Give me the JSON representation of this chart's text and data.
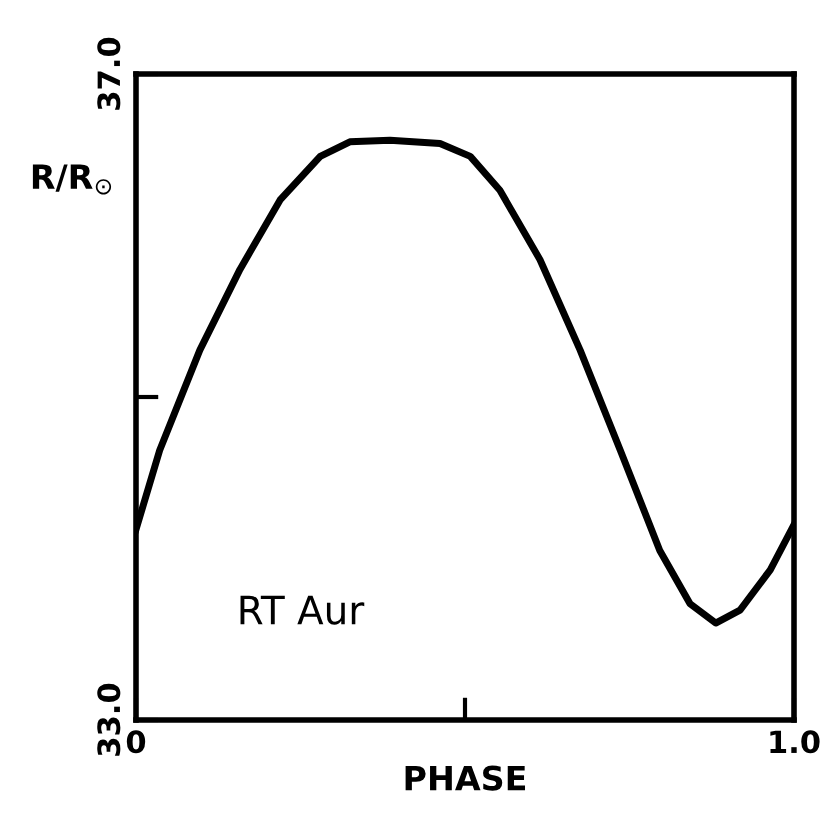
{
  "chart_data": {
    "type": "line",
    "xlabel": "PHASE",
    "ylabel": "R/R$_{⊙}$",
    "annotations": [
      "RT Aur"
    ],
    "x": [
      0,
      0.036,
      0.097,
      0.158,
      0.219,
      0.28,
      0.325,
      0.386,
      0.462,
      0.508,
      0.553,
      0.614,
      0.675,
      0.736,
      0.796,
      0.842,
      0.881,
      0.918,
      0.964,
      1.0
    ],
    "series": [
      {
        "color": "#000000",
        "values": [
          34.18,
          34.67,
          35.29,
          35.79,
          36.22,
          36.49,
          36.58,
          36.59,
          36.57,
          36.49,
          36.28,
          35.85,
          35.29,
          34.67,
          34.05,
          33.72,
          33.6,
          33.68,
          33.93,
          34.21
        ]
      }
    ],
    "xlim": [
      0,
      1.0
    ],
    "ylim": [
      33.0,
      37.0
    ],
    "xticks": [
      0,
      {
        "value": 0.5,
        "label": null
      },
      {
        "value": 1.0,
        "label": "1.0"
      }
    ],
    "yticks": [
      {
        "value": 33.0,
        "label": "33.0"
      },
      {
        "value": 35.0,
        "label": null
      },
      {
        "value": 37.0,
        "label": "37.0"
      }
    ],
    "grid": false,
    "legend": false,
    "marker": "none",
    "line_style": "solid"
  }
}
